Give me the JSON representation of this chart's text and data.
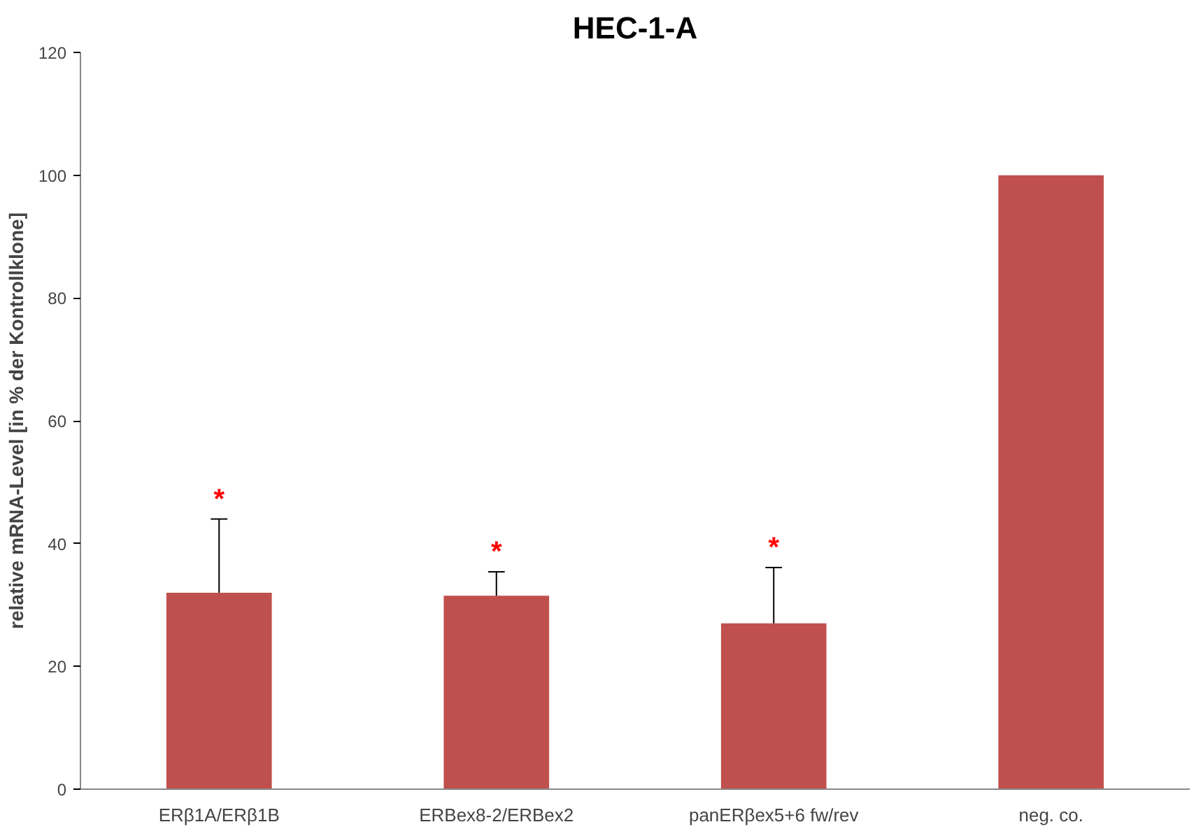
{
  "chart_data": {
    "type": "bar",
    "title": "HEC-1-A",
    "ylabel": "relative mRNA-Level [in % der Kontrollklone]",
    "categories": [
      "ERβ1A/ERβ1B",
      "ERBex8-2/ERBex2",
      "panERβex5+6 fw/rev",
      "neg. co."
    ],
    "values": [
      32,
      31.5,
      27,
      100
    ],
    "errors": [
      [
        32,
        44
      ],
      [
        31.5,
        35.4
      ],
      [
        27,
        36.1
      ],
      null
    ],
    "color": "#c0504d",
    "ylim": [
      0,
      120
    ],
    "yticks": [
      0,
      20,
      40,
      60,
      80,
      100,
      120
    ],
    "grid": false,
    "annotations": [
      "*",
      "*",
      "*"
    ]
  }
}
